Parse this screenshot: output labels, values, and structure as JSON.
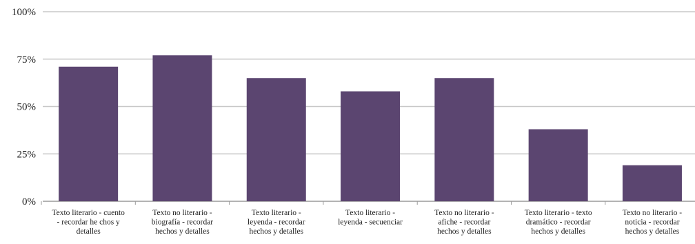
{
  "chart_data": {
    "type": "bar",
    "categories": [
      [
        "Texto literario - cuento",
        "- recordar he chos y",
        "detalles"
      ],
      [
        "Texto no literario -",
        "biografía - recordar",
        "hechos y detalles"
      ],
      [
        "Texto literario -",
        "leyenda - recordar",
        "hechos y detalles"
      ],
      [
        "Texto literario -",
        "leyenda - secuenciar"
      ],
      [
        "Texto no literario -",
        "afiche - recordar",
        "hechos y detalles"
      ],
      [
        "Texto literario - texto",
        "dramático - recordar",
        "hechos y detalles"
      ],
      [
        "Texto no literario -",
        "noticia - recordar",
        "hechos y detalles"
      ]
    ],
    "values": [
      71,
      77,
      65,
      58,
      65,
      38,
      19
    ],
    "unit": "%",
    "ylim": [
      0,
      100
    ],
    "yticks": [
      0,
      25,
      50,
      75,
      100
    ],
    "ytick_labels": [
      "0%",
      "25%",
      "50%",
      "75%",
      "100%"
    ],
    "grid": true,
    "title": "",
    "xlabel": "",
    "ylabel": "",
    "colors": {
      "bar": "#5b4570",
      "grid": "#c8c8c8",
      "axis": "#9a9a9a"
    }
  }
}
